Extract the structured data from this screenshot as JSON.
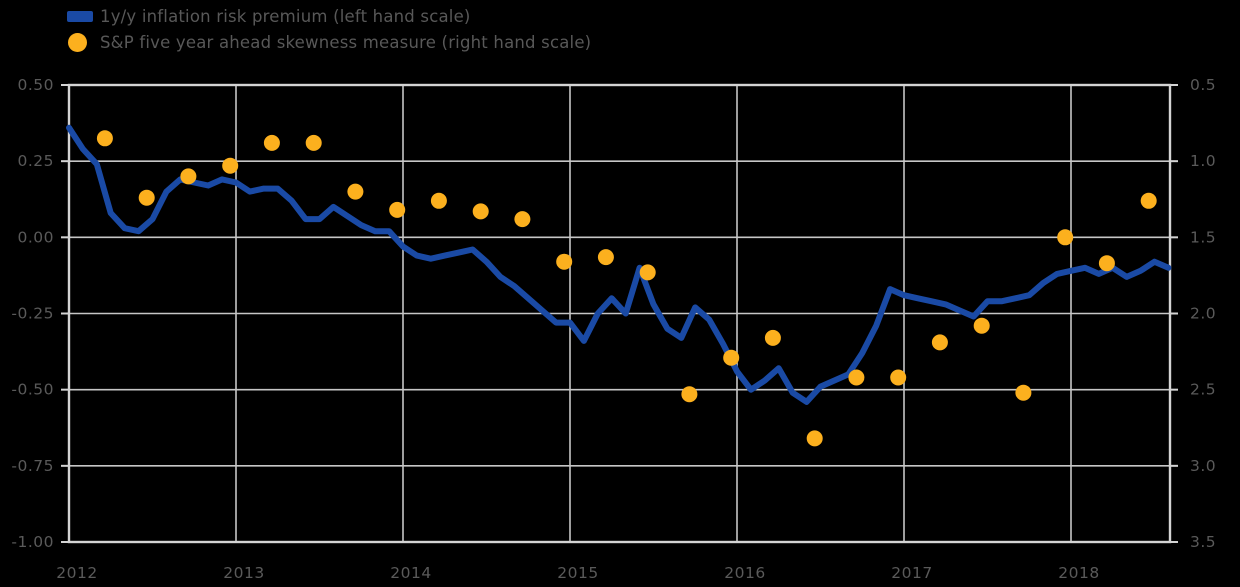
{
  "chart_data": {
    "type": "line",
    "title": "",
    "background_color": "#000000",
    "grid_color": "#c6c6c6",
    "frame_color": "#d4d4d4",
    "text_color": "#5a5a5a",
    "legend_position": "top-left",
    "legend": [
      {
        "label": "1y/y inflation risk premium (left hand scale)",
        "color": "#1a4aa5",
        "marker": "line"
      },
      {
        "label": "S&P five year ahead skewness measure (right hand scale)",
        "color": "#fcb01e",
        "marker": "circle"
      }
    ],
    "x_axis": {
      "tick_labels": [
        "2012",
        "2013",
        "2014",
        "2015",
        "2016",
        "2017",
        "2018"
      ],
      "tick_values": [
        2012,
        2013,
        2014,
        2015,
        2016,
        2017,
        2018
      ],
      "range": [
        2012,
        2018.59
      ]
    },
    "left_axis": {
      "tick_labels": [
        "0.50",
        "0.25",
        "0.00",
        "-0.25",
        "-0.50",
        "-0.75",
        "-1.00"
      ],
      "tick_values": [
        0.5,
        0.25,
        0,
        -0.25,
        -0.5,
        -0.75,
        -1
      ],
      "range": [
        -1.0,
        0.5
      ],
      "inverted": false
    },
    "right_axis": {
      "tick_labels": [
        "0.5",
        "1.0",
        "1.5",
        "2.0",
        "2.5",
        "3.0",
        "3.5"
      ],
      "tick_values": [
        0.5,
        1,
        1.5,
        2,
        2.5,
        3,
        3.5
      ],
      "range": [
        0.5,
        3.5
      ],
      "inverted": true
    },
    "series": [
      {
        "name": "1y/y inflation risk premium",
        "axis": "left",
        "type": "line",
        "color": "#1a4aa5",
        "line_width": 6,
        "x_start": 2012.0,
        "x_step_years": 0.0833333,
        "values": [
          0.36,
          0.29,
          0.24,
          0.08,
          0.03,
          0.02,
          0.06,
          0.15,
          0.19,
          0.18,
          0.17,
          0.19,
          0.18,
          0.15,
          0.16,
          0.16,
          0.12,
          0.06,
          0.06,
          0.1,
          0.07,
          0.04,
          0.02,
          0.02,
          -0.03,
          -0.06,
          -0.07,
          -0.06,
          -0.05,
          -0.04,
          -0.08,
          -0.13,
          -0.16,
          -0.2,
          -0.24,
          -0.28,
          -0.28,
          -0.34,
          -0.25,
          -0.2,
          -0.25,
          -0.1,
          -0.22,
          -0.3,
          -0.33,
          -0.23,
          -0.27,
          -0.35,
          -0.44,
          -0.5,
          -0.47,
          -0.43,
          -0.51,
          -0.54,
          -0.49,
          -0.47,
          -0.45,
          -0.38,
          -0.29,
          -0.17,
          -0.19,
          -0.2,
          -0.21,
          -0.22,
          -0.24,
          -0.26,
          -0.21,
          -0.21,
          -0.2,
          -0.19,
          -0.15,
          -0.12,
          -0.11,
          -0.1,
          -0.12,
          -0.1,
          -0.13,
          -0.11,
          -0.08,
          -0.1
        ]
      },
      {
        "name": "S&P five year ahead skewness measure",
        "axis": "right",
        "type": "scatter",
        "color": "#fcb01e",
        "dot_radius": 8,
        "x_start": 2012.215,
        "x_step_years": 0.25,
        "values": [
          0.85,
          1.24,
          1.1,
          1.03,
          0.88,
          0.88,
          1.2,
          1.32,
          1.26,
          1.33,
          1.38,
          1.66,
          1.63,
          1.73,
          2.53,
          2.29,
          2.16,
          2.82,
          2.42,
          2.42,
          2.19,
          2.08,
          2.52,
          1.5,
          1.67,
          1.26
        ]
      }
    ]
  }
}
